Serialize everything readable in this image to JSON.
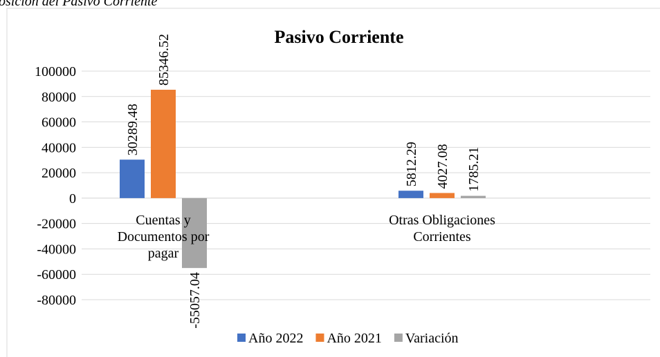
{
  "caption": "osición del Pasivo Corriente",
  "chart_data": {
    "type": "bar",
    "title": "Pasivo Corriente",
    "categories": [
      "Cuentas y Documentos por pagar",
      "Otras Obligaciones Corrientes"
    ],
    "series": [
      {
        "name": "Año 2022",
        "color": "#4472c4",
        "values": [
          30289.48,
          5812.29
        ]
      },
      {
        "name": "Año 2021",
        "color": "#ed7d31",
        "values": [
          85346.52,
          4027.08
        ]
      },
      {
        "name": "Variación",
        "color": "#a5a5a5",
        "values": [
          -55057.04,
          1785.21
        ]
      }
    ],
    "ylim": [
      -80000,
      100000
    ],
    "yticks": [
      -80000,
      -60000,
      -40000,
      -20000,
      0,
      20000,
      40000,
      60000,
      80000,
      100000
    ],
    "grid": true,
    "legend": "bottom"
  }
}
